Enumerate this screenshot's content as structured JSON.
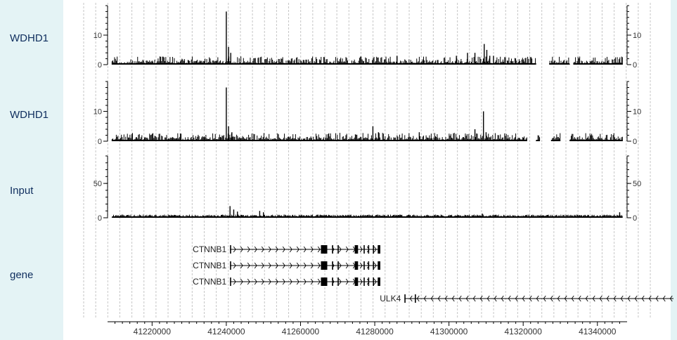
{
  "chart_data": {
    "type": "bar",
    "title": "",
    "x_axis": {
      "range": [
        41208000,
        41348000
      ],
      "ticks": [
        41220000,
        41240000,
        41260000,
        41280000,
        41300000,
        41320000,
        41340000
      ],
      "tick_labels": [
        "41220000",
        "41240000",
        "41260000",
        "41280000",
        "41300000",
        "41320000",
        "41340000"
      ]
    },
    "tracks": [
      {
        "label": "WDHD1",
        "ylim": [
          0,
          20
        ],
        "yticks": [
          0,
          10
        ],
        "ytick_labels": [
          "0",
          "10"
        ],
        "gaps": [
          [
            41323500,
            41327000
          ],
          [
            41332500,
            41333500
          ]
        ],
        "peaks": [
          [
            41240000,
            18
          ],
          [
            41240600,
            6
          ],
          [
            41241200,
            4
          ],
          [
            41286000,
            3
          ],
          [
            41302000,
            3
          ],
          [
            41305000,
            4
          ],
          [
            41307000,
            4
          ],
          [
            41309500,
            7
          ],
          [
            41310200,
            5
          ],
          [
            41311000,
            3
          ],
          [
            41312000,
            3
          ]
        ]
      },
      {
        "label": "WDHD1",
        "ylim": [
          0,
          20
        ],
        "yticks": [
          0,
          10
        ],
        "ytick_labels": [
          "0",
          "10"
        ],
        "gaps": [
          [
            41321000,
            41323500
          ],
          [
            41324500,
            41327500
          ],
          [
            41330000,
            41332500
          ]
        ],
        "peaks": [
          [
            41240000,
            18
          ],
          [
            41240600,
            5
          ],
          [
            41241500,
            3
          ],
          [
            41279500,
            5
          ],
          [
            41281000,
            3
          ],
          [
            41292000,
            3
          ],
          [
            41307000,
            4
          ],
          [
            41309300,
            10
          ],
          [
            41310000,
            3
          ]
        ]
      },
      {
        "label": "Input",
        "ylim": [
          0,
          90
        ],
        "yticks": [
          0,
          50
        ],
        "ytick_labels": [
          "0",
          "50"
        ],
        "gaps": [],
        "peaks": [
          [
            41241000,
            17
          ],
          [
            41242000,
            12
          ],
          [
            41243000,
            9
          ],
          [
            41249000,
            10
          ],
          [
            41250000,
            8
          ],
          [
            41309000,
            6
          ],
          [
            41346000,
            8
          ]
        ]
      }
    ],
    "gene_track": {
      "label": "gene",
      "genes": [
        {
          "name": "CTNNB1",
          "start": 41241000,
          "end": 41281500,
          "strand": "+",
          "exons": [
            [
              41241000,
              41241300
            ],
            [
              41265500,
              41267200
            ],
            [
              41268500,
              41268800
            ],
            [
              41270000,
              41270300
            ],
            [
              41274600,
              41275500
            ],
            [
              41277000,
              41277300
            ],
            [
              41278200,
              41278500
            ],
            [
              41279500,
              41279800
            ],
            [
              41280800,
              41281500
            ]
          ]
        },
        {
          "name": "CTNNB1",
          "start": 41241000,
          "end": 41281500,
          "strand": "+",
          "exons": [
            [
              41241000,
              41241300
            ],
            [
              41265500,
              41267200
            ],
            [
              41268500,
              41268800
            ],
            [
              41270000,
              41270300
            ],
            [
              41274600,
              41275500
            ],
            [
              41277000,
              41277300
            ],
            [
              41278200,
              41278500
            ],
            [
              41279500,
              41279800
            ],
            [
              41280800,
              41281500
            ]
          ]
        },
        {
          "name": "CTNNB1",
          "start": 41241000,
          "end": 41281500,
          "strand": "+",
          "exons": [
            [
              41241000,
              41241300
            ],
            [
              41265500,
              41267200
            ],
            [
              41268500,
              41268800
            ],
            [
              41270000,
              41270300
            ],
            [
              41274600,
              41275500
            ],
            [
              41277000,
              41277300
            ],
            [
              41278200,
              41278500
            ],
            [
              41279500,
              41279800
            ],
            [
              41280800,
              41281500
            ]
          ]
        },
        {
          "name": "ULK4",
          "start": 41288000,
          "end": 41362000,
          "strand": "-",
          "exons": [
            [
              41288000,
              41288300
            ],
            [
              41290800,
              41291100
            ]
          ]
        }
      ]
    },
    "grid": true
  }
}
